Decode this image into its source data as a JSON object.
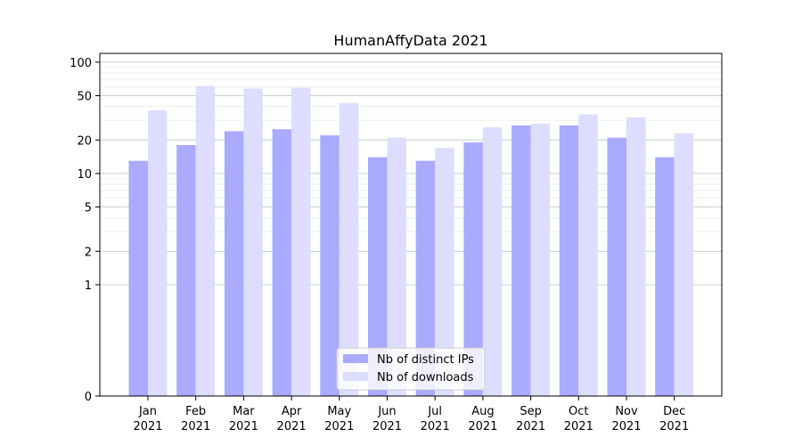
{
  "chart_data": {
    "type": "bar",
    "title": "HumanAffyData 2021",
    "xlabel": "",
    "ylabel": "",
    "y_scale": "symlog",
    "ylim": [
      0,
      120
    ],
    "yticks": [
      0,
      1,
      2,
      5,
      10,
      20,
      50,
      100
    ],
    "ytick_labels": [
      "0",
      "1",
      "2",
      "5",
      "10",
      "20",
      "50",
      "100"
    ],
    "grid": true,
    "legend_position": "lower-center",
    "categories": [
      [
        "Jan",
        "2021"
      ],
      [
        "Feb",
        "2021"
      ],
      [
        "Mar",
        "2021"
      ],
      [
        "Apr",
        "2021"
      ],
      [
        "May",
        "2021"
      ],
      [
        "Jun",
        "2021"
      ],
      [
        "Jul",
        "2021"
      ],
      [
        "Aug",
        "2021"
      ],
      [
        "Sep",
        "2021"
      ],
      [
        "Oct",
        "2021"
      ],
      [
        "Nov",
        "2021"
      ],
      [
        "Dec",
        "2021"
      ]
    ],
    "series": [
      {
        "name": "Nb of distinct IPs",
        "color": "#aaaaff",
        "values": [
          13,
          18,
          24,
          25,
          22,
          14,
          13,
          19,
          27,
          27,
          21,
          14
        ]
      },
      {
        "name": "Nb of downloads",
        "color": "#ddddff",
        "values": [
          37,
          61,
          58,
          59,
          43,
          21,
          17,
          26,
          28,
          34,
          32,
          23
        ]
      }
    ]
  }
}
